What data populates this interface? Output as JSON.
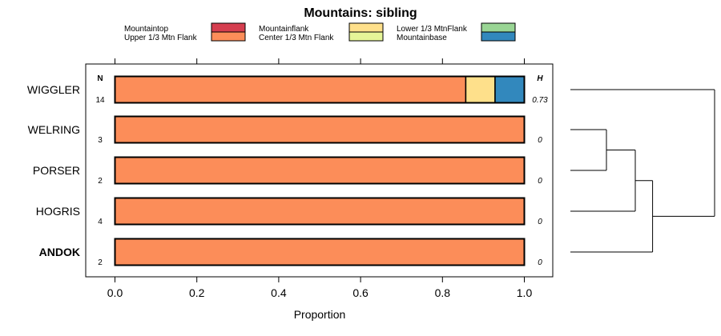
{
  "chart_data": {
    "type": "bar",
    "orientation": "horizontal",
    "stacked": true,
    "title": "Mountains: sibling",
    "xlabel": "Proportion",
    "xlim": [
      0,
      1
    ],
    "xticks": [
      "0.0",
      "0.2",
      "0.4",
      "0.6",
      "0.8",
      "1.0"
    ],
    "n_header": "N",
    "h_header": "H",
    "legend": [
      {
        "name": "Mountaintop",
        "color": "#d53e4f"
      },
      {
        "name": "Upper 1/3 Mtn Flank",
        "color": "#fc8d59"
      },
      {
        "name": "Mountainflank",
        "color": "#fee08b"
      },
      {
        "name": "Center 1/3 Mtn Flank",
        "color": "#e6f598"
      },
      {
        "name": "Lower 1/3 MtnFlank",
        "color": "#99d594"
      },
      {
        "name": "Mountainbase",
        "color": "#3288bd"
      }
    ],
    "rows": [
      {
        "label": "WIGGLER",
        "bold": false,
        "n": "14",
        "h": "0.73",
        "segments": [
          0,
          0.857,
          0.0715,
          0,
          0,
          0.0715
        ]
      },
      {
        "label": "WELRING",
        "bold": false,
        "n": "3",
        "h": "0",
        "segments": [
          0,
          1,
          0,
          0,
          0,
          0
        ]
      },
      {
        "label": "PORSER",
        "bold": false,
        "n": "2",
        "h": "0",
        "segments": [
          0,
          1,
          0,
          0,
          0,
          0
        ]
      },
      {
        "label": "HOGRIS",
        "bold": false,
        "n": "4",
        "h": "0",
        "segments": [
          0,
          1,
          0,
          0,
          0,
          0
        ]
      },
      {
        "label": "ANDOK",
        "bold": true,
        "n": "2",
        "h": "0",
        "segments": [
          0,
          1,
          0,
          0,
          0,
          0
        ]
      }
    ],
    "dendrogram": {
      "leaves": [
        "WIGGLER",
        "WELRING",
        "PORSER",
        "HOGRIS",
        "ANDOK"
      ],
      "merges": [
        {
          "a": 1,
          "b": 2,
          "height": 0.25
        },
        {
          "a": "m0",
          "b": 3,
          "height": 0.45
        },
        {
          "a": "m1",
          "b": 4,
          "height": 0.57
        },
        {
          "a": "m2",
          "b": 0,
          "height": 1.0
        }
      ]
    }
  }
}
